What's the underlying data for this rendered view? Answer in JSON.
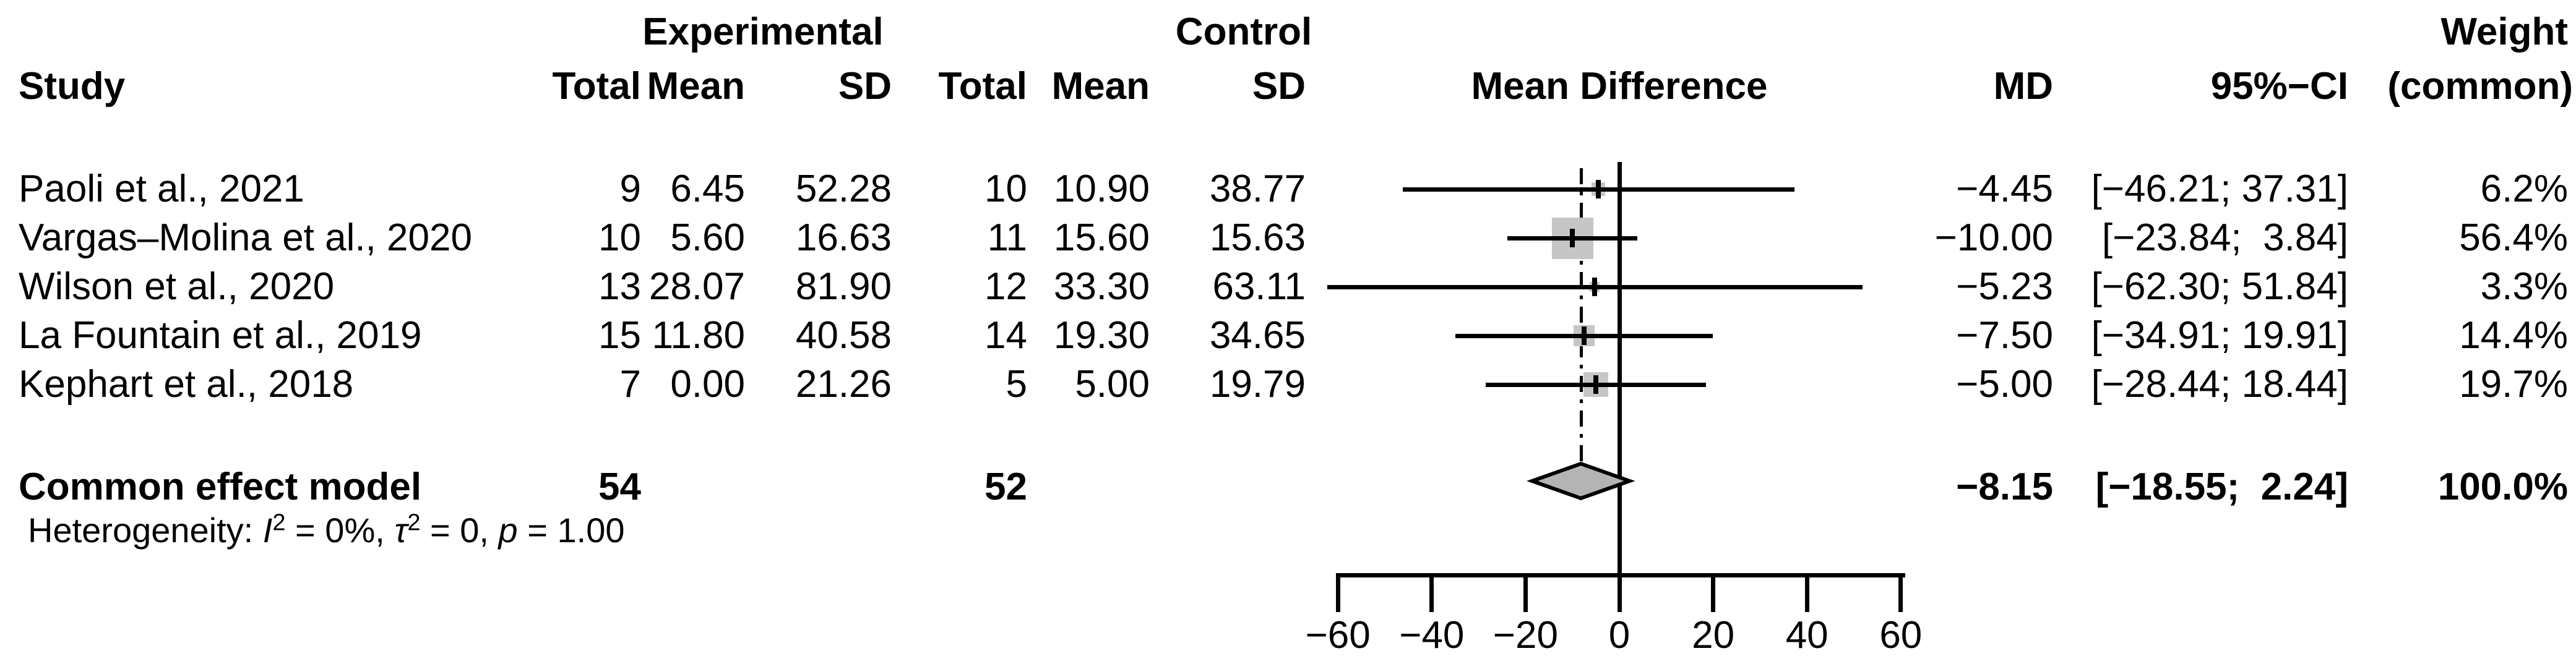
{
  "colors": {
    "background": "#ffffff",
    "text": "#000000",
    "box_fill": "#c6c6c6",
    "diamond_fill": "#b4b4b4",
    "line": "#000000"
  },
  "table": {
    "headers": {
      "experimental_group": "Experimental",
      "control_group": "Control",
      "weight_line1": "Weight",
      "study": "Study",
      "exp_total": "Total",
      "exp_mean": "Mean",
      "exp_sd": "SD",
      "ctrl_total": "Total",
      "ctrl_mean": "Mean",
      "ctrl_sd": "SD",
      "mean_difference": "Mean Difference",
      "md": "MD",
      "ci": "95%−CI",
      "weight_line2": "(common)"
    },
    "rows": [
      {
        "study": "Paoli et al., 2021",
        "exp_total": "9",
        "exp_mean": "6.45",
        "exp_sd": "52.28",
        "ctrl_total": "10",
        "ctrl_mean": "10.90",
        "ctrl_sd": "38.77",
        "md": "−4.45",
        "ci": "[−46.21; 37.31]",
        "weight": "6.2%"
      },
      {
        "study": "Vargas–Molina et al., 2020",
        "exp_total": "10",
        "exp_mean": "5.60",
        "exp_sd": "16.63",
        "ctrl_total": "11",
        "ctrl_mean": "15.60",
        "ctrl_sd": "15.63",
        "md": "−10.00",
        "ci": "[−23.84;  3.84]",
        "weight": "56.4%"
      },
      {
        "study": "Wilson et al., 2020",
        "exp_total": "13",
        "exp_mean": "28.07",
        "exp_sd": "81.90",
        "ctrl_total": "12",
        "ctrl_mean": "33.30",
        "ctrl_sd": "63.11",
        "md": "−5.23",
        "ci": "[−62.30; 51.84]",
        "weight": "3.3%"
      },
      {
        "study": "La Fountain et al., 2019",
        "exp_total": "15",
        "exp_mean": "11.80",
        "exp_sd": "40.58",
        "ctrl_total": "14",
        "ctrl_mean": "19.30",
        "ctrl_sd": "34.65",
        "md": "−7.50",
        "ci": "[−34.91; 19.91]",
        "weight": "14.4%"
      },
      {
        "study": "Kephart et al., 2018",
        "exp_total": "7",
        "exp_mean": "0.00",
        "exp_sd": "21.26",
        "ctrl_total": "5",
        "ctrl_mean": "5.00",
        "ctrl_sd": "19.79",
        "md": "−5.00",
        "ci": "[−28.44; 18.44]",
        "weight": "19.7%"
      }
    ],
    "summary": {
      "label": "Common effect model",
      "exp_total": "54",
      "ctrl_total": "52",
      "md": "−8.15",
      "ci": "[−18.55;  2.24]",
      "weight": "100.0%"
    },
    "heterogeneity_segments": [
      {
        "t": "Heterogeneity: "
      },
      {
        "t": "I",
        "i": 1
      },
      {
        "t": "2",
        "sup": 1
      },
      {
        "t": " = 0%, "
      },
      {
        "t": "τ",
        "i": 1
      },
      {
        "t": "2",
        "sup": 1
      },
      {
        "t": " = 0, "
      },
      {
        "t": "p",
        "i": 1
      },
      {
        "t": " = 1.00"
      }
    ]
  },
  "chart_data": {
    "type": "forest",
    "title": "Mean Difference",
    "effect_measure": "MD",
    "x_axis": {
      "range": [
        -60,
        60
      ],
      "ticks": [
        -60,
        -40,
        -20,
        0,
        20,
        40,
        60
      ],
      "tick_labels": [
        "−60",
        "−40",
        "−20",
        "0",
        "20",
        "40",
        "60"
      ]
    },
    "zero_line": 0,
    "studies": [
      {
        "name": "Paoli et al., 2021",
        "md": -4.45,
        "ci_low": -46.21,
        "ci_high": 37.31,
        "weight_pct": 6.2
      },
      {
        "name": "Vargas–Molina et al., 2020",
        "md": -10.0,
        "ci_low": -23.84,
        "ci_high": 3.84,
        "weight_pct": 56.4
      },
      {
        "name": "Wilson et al., 2020",
        "md": -5.23,
        "ci_low": -62.3,
        "ci_high": 51.84,
        "weight_pct": 3.3
      },
      {
        "name": "La Fountain et al., 2019",
        "md": -7.5,
        "ci_low": -34.91,
        "ci_high": 19.91,
        "weight_pct": 14.4
      },
      {
        "name": "Kephart et al., 2018",
        "md": -5.0,
        "ci_low": -28.44,
        "ci_high": 18.44,
        "weight_pct": 19.7
      }
    ],
    "common_effect": {
      "md": -8.15,
      "ci_low": -18.55,
      "ci_high": 2.24,
      "weight_pct": 100.0
    },
    "heterogeneity": {
      "I2": "0%",
      "tau2": "0",
      "p": "1.00"
    }
  }
}
